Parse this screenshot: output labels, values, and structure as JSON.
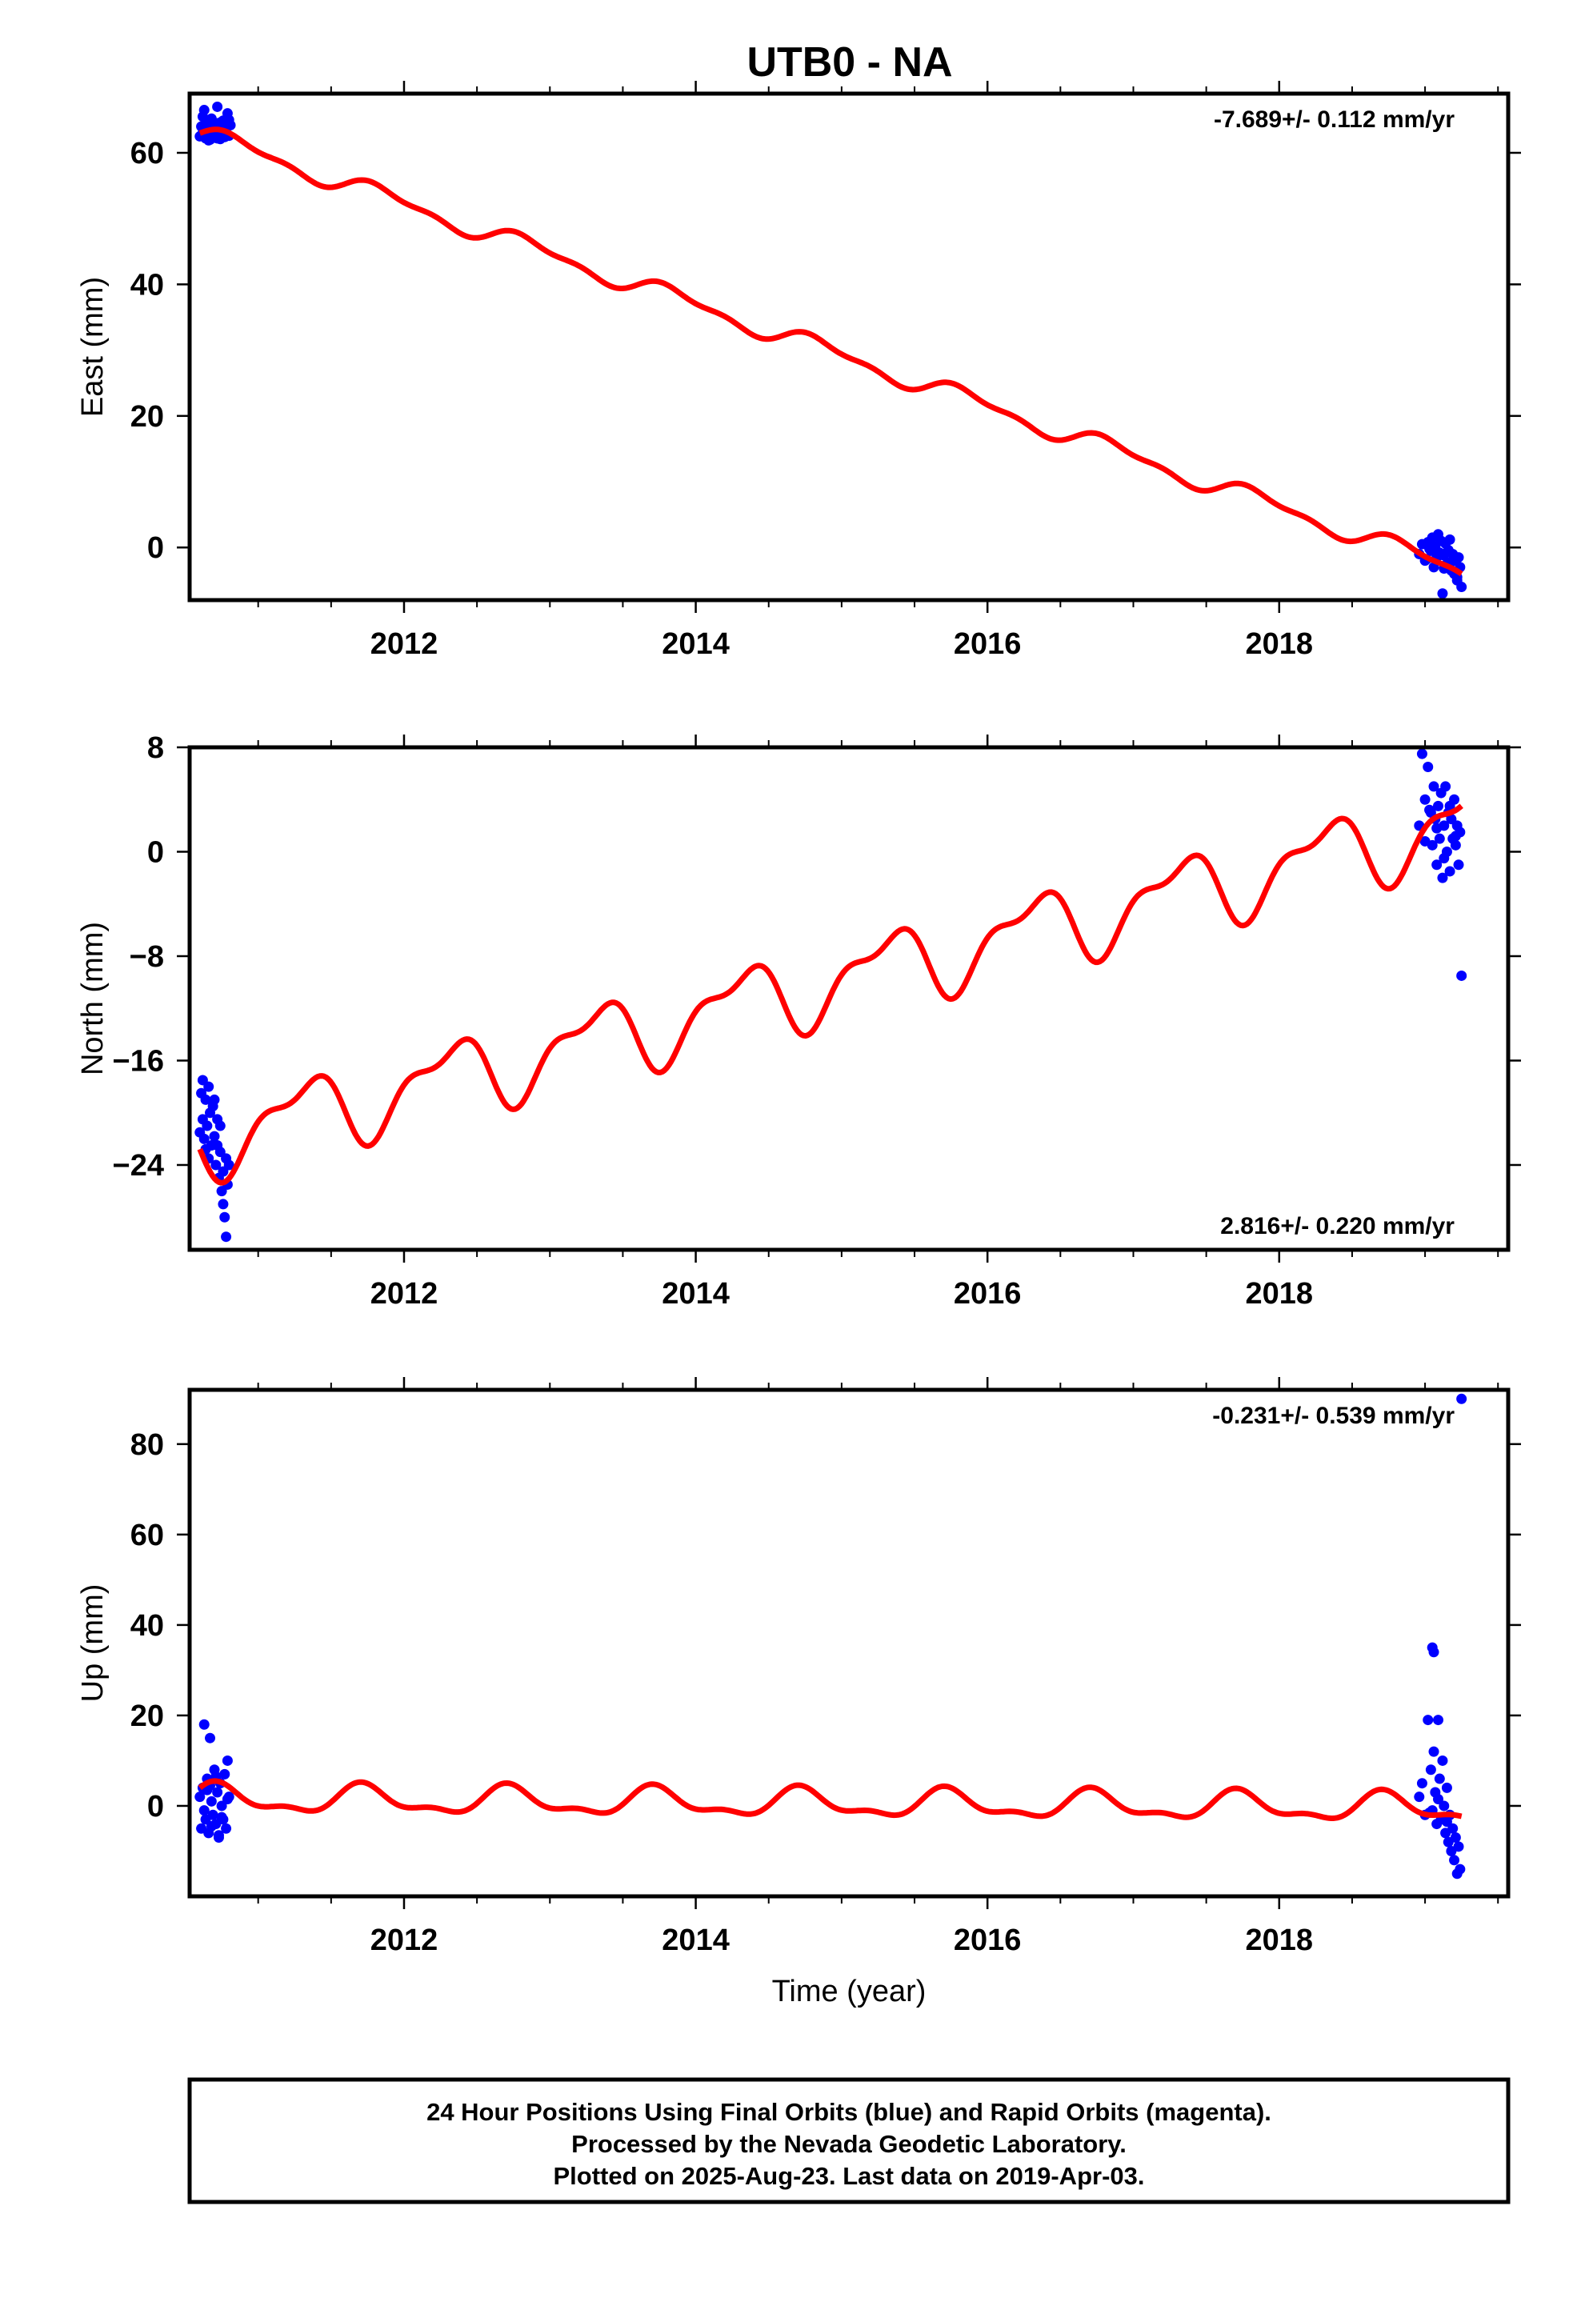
{
  "title": "UTB0 - NA",
  "footer": {
    "line1": "24 Hour Positions Using Final Orbits (blue) and Rapid Orbits (magenta).",
    "line2": "Processed by the Nevada Geodetic Laboratory.",
    "line3": "Plotted on 2025-Aug-23. Last data on 2019-Apr-03."
  },
  "colors": {
    "data": "#0000ff",
    "model": "#ff0000",
    "frame": "#000000"
  },
  "chart_data": [
    {
      "type": "scatter",
      "component": "east",
      "ylabel": "East (mm)",
      "xlabel": "",
      "xlim": [
        2010.53,
        2019.57
      ],
      "ylim": [
        -8,
        69
      ],
      "xticks": [
        2012,
        2014,
        2016,
        2018
      ],
      "xtick_labels": [
        "2012",
        "2014",
        "2016",
        "2018"
      ],
      "yticks": [
        0,
        20,
        40,
        60
      ],
      "ytick_labels": [
        "0",
        "20",
        "40",
        "60"
      ],
      "rate_label": "-7.689+/- 0.112 mm/yr",
      "rate_position": "top-right",
      "model": {
        "start": 2010.6,
        "end": 2019.25,
        "t0": 2010.6,
        "y0": 63.0,
        "rate": -7.689,
        "amp": 1.3,
        "phase": 0.0
      },
      "series": [
        {
          "name": "Final Orbits",
          "x": [
            2010.6,
            2010.61,
            2010.62,
            2010.63,
            2010.64,
            2010.65,
            2010.66,
            2010.67,
            2010.68,
            2010.69,
            2010.7,
            2010.71,
            2010.72,
            2010.73,
            2010.74,
            2010.75,
            2010.76,
            2010.77,
            2010.78,
            2010.79,
            2010.8,
            2010.81,
            2010.62,
            2010.66,
            2010.7,
            2010.74,
            2010.78,
            2010.64,
            2010.72,
            2010.8
          ],
          "y": [
            62.5,
            64.0,
            63.0,
            66.5,
            62.2,
            64.8,
            63.5,
            62.0,
            65.2,
            63.8,
            62.3,
            64.5,
            67.0,
            63.0,
            62.1,
            63.7,
            64.9,
            62.4,
            63.1,
            66.0,
            62.6,
            64.2,
            65.5,
            61.9,
            63.3,
            64.6,
            62.8,
            63.9,
            62.2,
            65.0
          ]
        },
        {
          "name": "Final Orbits (2019)",
          "x": [
            2018.96,
            2018.98,
            2019.0,
            2019.02,
            2019.04,
            2019.05,
            2019.06,
            2019.07,
            2019.08,
            2019.09,
            2019.1,
            2019.11,
            2019.12,
            2019.13,
            2019.14,
            2019.15,
            2019.16,
            2019.17,
            2019.18,
            2019.19,
            2019.2,
            2019.21,
            2019.22,
            2019.23,
            2019.24,
            2019.25,
            2019.01,
            2019.03,
            2019.09,
            2019.13,
            2019.18,
            2019.22
          ],
          "y": [
            -1.0,
            0.5,
            -2.0,
            0.8,
            -0.5,
            1.5,
            -3.0,
            0.2,
            -1.5,
            2.0,
            -0.8,
            1.0,
            -7.0,
            -1.2,
            0.6,
            -2.5,
            -0.4,
            1.2,
            -3.5,
            -1.0,
            -4.0,
            -2.0,
            -5.0,
            -1.5,
            -3.0,
            -6.0,
            -1.8,
            -0.2,
            -1.0,
            -3.2,
            -2.2,
            -4.5
          ]
        }
      ]
    },
    {
      "type": "scatter",
      "component": "north",
      "ylabel": "North (mm)",
      "xlabel": "",
      "xlim": [
        2010.53,
        2019.57
      ],
      "ylim": [
        -30.5,
        8.0
      ],
      "xticks": [
        2012,
        2014,
        2016,
        2018
      ],
      "xtick_labels": [
        "2012",
        "2014",
        "2016",
        "2018"
      ],
      "yticks": [
        -24,
        -16,
        -8,
        0,
        8
      ],
      "ytick_labels": [
        "−24",
        "−16",
        "−8",
        "0",
        "8"
      ],
      "rate_label": "2.816+/- 0.220 mm/yr",
      "rate_position": "bottom-right",
      "model": {
        "start": 2010.6,
        "end": 2019.25,
        "t0": 2010.8,
        "y0": -21.6,
        "rate": 2.816,
        "amp": 2.6,
        "phase": -1.57
      },
      "series": [
        {
          "name": "Final Orbits",
          "x": [
            2010.6,
            2010.61,
            2010.62,
            2010.63,
            2010.64,
            2010.65,
            2010.66,
            2010.67,
            2010.68,
            2010.69,
            2010.7,
            2010.71,
            2010.72,
            2010.73,
            2010.74,
            2010.75,
            2010.76,
            2010.77,
            2010.78,
            2010.79,
            2010.8,
            2010.62,
            2010.66,
            2010.7,
            2010.74,
            2010.78,
            2010.64,
            2010.72,
            2010.76
          ],
          "y": [
            -21.5,
            -18.5,
            -20.5,
            -22.0,
            -19.0,
            -21.0,
            -23.5,
            -20.0,
            -22.5,
            -19.5,
            -21.8,
            -24.0,
            -22.5,
            -25.0,
            -23.0,
            -26.0,
            -24.5,
            -28.0,
            -29.5,
            -25.5,
            -24.0,
            -17.5,
            -18.0,
            -19.0,
            -21.0,
            -23.5,
            -22.8,
            -20.5,
            -27.0
          ]
        },
        {
          "name": "Final Orbits (2019)",
          "x": [
            2018.96,
            2018.98,
            2019.0,
            2019.02,
            2019.04,
            2019.05,
            2019.06,
            2019.07,
            2019.08,
            2019.09,
            2019.1,
            2019.11,
            2019.12,
            2019.13,
            2019.14,
            2019.15,
            2019.16,
            2019.17,
            2019.18,
            2019.19,
            2019.2,
            2019.21,
            2019.22,
            2019.23,
            2019.24,
            2019.25,
            2019.0,
            2019.03,
            2019.08,
            2019.13,
            2019.17,
            2019.21
          ],
          "y": [
            2.0,
            7.5,
            4.0,
            6.5,
            3.0,
            0.5,
            5.0,
            2.5,
            -1.0,
            3.5,
            1.0,
            4.5,
            -2.0,
            2.0,
            5.0,
            0.0,
            3.0,
            -1.5,
            2.5,
            1.0,
            4.0,
            0.5,
            2.0,
            -1.0,
            1.5,
            -9.5,
            0.8,
            3.2,
            1.8,
            -0.5,
            3.5,
            1.2
          ]
        }
      ]
    },
    {
      "type": "scatter",
      "component": "up",
      "ylabel": "Up (mm)",
      "xlabel": "Time (year)",
      "xlim": [
        2010.53,
        2019.57
      ],
      "ylim": [
        -20,
        92
      ],
      "xticks": [
        2012,
        2014,
        2016,
        2018
      ],
      "xtick_labels": [
        "2012",
        "2014",
        "2016",
        "2018"
      ],
      "yticks": [
        0,
        20,
        40,
        60,
        80
      ],
      "ytick_labels": [
        "0",
        "20",
        "40",
        "60",
        "80"
      ],
      "rate_label": "-0.231+/- 0.539 mm/yr",
      "rate_position": "top-right",
      "model": {
        "start": 2010.6,
        "end": 2019.25,
        "t0": 2010.6,
        "y0": 1.5,
        "rate": -0.231,
        "amp": 2.8,
        "phase": 0.8
      },
      "series": [
        {
          "name": "Final Orbits",
          "x": [
            2010.6,
            2010.61,
            2010.62,
            2010.63,
            2010.64,
            2010.65,
            2010.66,
            2010.67,
            2010.68,
            2010.69,
            2010.7,
            2010.71,
            2010.72,
            2010.73,
            2010.74,
            2010.75,
            2010.76,
            2010.77,
            2010.78,
            2010.79,
            2010.8,
            2010.63,
            2010.65,
            2010.68,
            2010.71,
            2010.75,
            2010.79,
            2010.67,
            2010.73
          ],
          "y": [
            2.0,
            -5.0,
            4.0,
            18.0,
            -3.0,
            6.0,
            -6.0,
            15.0,
            1.0,
            -2.0,
            8.0,
            -4.0,
            3.0,
            -7.0,
            5.0,
            0.0,
            -3.0,
            7.0,
            -5.0,
            10.0,
            2.0,
            -1.0,
            3.5,
            -4.5,
            6.5,
            -2.5,
            1.5,
            4.5,
            -6.5
          ]
        },
        {
          "name": "Final Orbits (2019)",
          "x": [
            2018.96,
            2018.98,
            2019.0,
            2019.02,
            2019.04,
            2019.05,
            2019.06,
            2019.07,
            2019.08,
            2019.09,
            2019.1,
            2019.11,
            2019.12,
            2019.13,
            2019.14,
            2019.15,
            2019.16,
            2019.17,
            2019.18,
            2019.19,
            2019.2,
            2019.21,
            2019.22,
            2019.23,
            2019.24,
            2019.25,
            2019.05,
            2019.06,
            2019.03,
            2019.09,
            2019.15
          ],
          "y": [
            2.0,
            5.0,
            -2.0,
            19.0,
            8.0,
            -1.0,
            12.0,
            3.0,
            -4.0,
            19.0,
            6.0,
            -3.0,
            10.0,
            0.0,
            -6.0,
            4.0,
            -8.0,
            -2.0,
            -10.0,
            -5.0,
            -12.0,
            -7.0,
            -15.0,
            -9.0,
            -14.0,
            90.0,
            35.0,
            34.0,
            -1.5,
            1.5,
            -3.5
          ]
        }
      ]
    }
  ]
}
